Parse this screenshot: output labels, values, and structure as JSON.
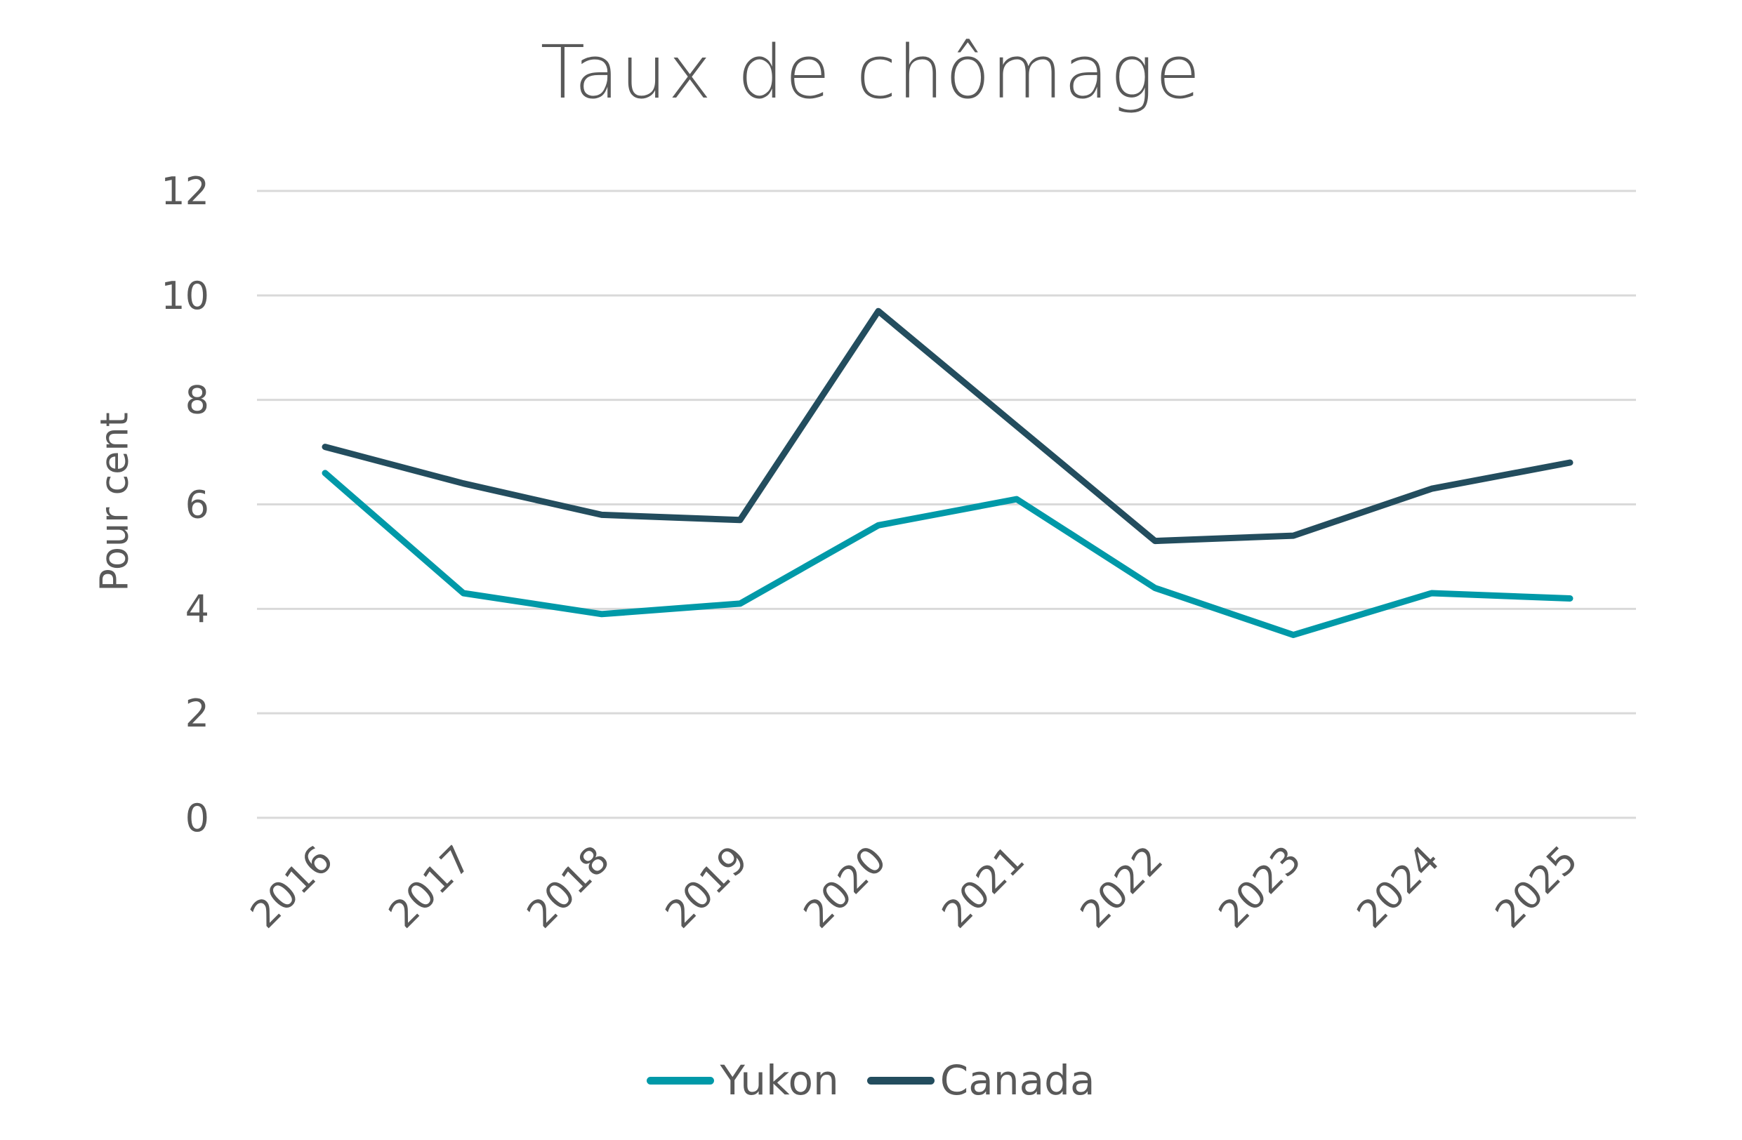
{
  "chart_data": {
    "type": "line",
    "title": "Taux de chômage",
    "xlabel": "",
    "ylabel": "Pour cent",
    "categories": [
      "2016",
      "2017",
      "2018",
      "2019",
      "2020",
      "2021",
      "2022",
      "2023",
      "2024",
      "2025"
    ],
    "series": [
      {
        "name": "Yukon",
        "color": "#0099A8",
        "values": [
          6.6,
          4.3,
          3.9,
          4.1,
          5.6,
          6.1,
          4.4,
          3.5,
          4.3,
          4.2
        ]
      },
      {
        "name": "Canada",
        "color": "#234D5E",
        "values": [
          7.1,
          6.4,
          5.8,
          5.7,
          9.7,
          7.5,
          5.3,
          5.4,
          6.3,
          6.8
        ]
      }
    ],
    "yticks": [
      0,
      2,
      4,
      6,
      8,
      10,
      12
    ],
    "ylim": [
      0,
      12
    ],
    "grid": true,
    "legend_position": "bottom",
    "x_tick_rotation": -45
  },
  "colors": {
    "text": "#595959",
    "grid": "#D9D9D9"
  }
}
